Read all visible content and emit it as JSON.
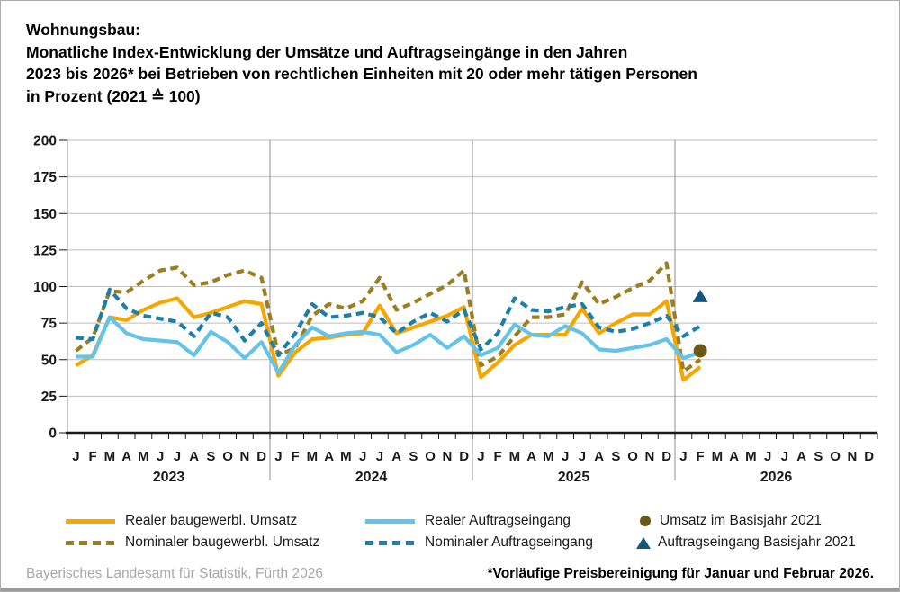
{
  "title": {
    "lines": [
      "Wohnungsbau:",
      "Monatliche Index-Entwicklung der Umsätze und Auftragseingänge in den Jahren",
      "2023 bis 2026* bei Betrieben von rechtlichen Einheiten mit 20 oder mehr tätigen Personen",
      "in Prozent (2021 ≙ 100)"
    ]
  },
  "chart_data": {
    "type": "line",
    "ylim": [
      0,
      200
    ],
    "y_ticks": [
      0,
      25,
      50,
      75,
      100,
      125,
      150,
      175,
      200
    ],
    "years": [
      "2023",
      "2024",
      "2025",
      "2026"
    ],
    "month_letters": [
      "J",
      "F",
      "M",
      "A",
      "M",
      "J",
      "J",
      "A",
      "S",
      "O",
      "N",
      "D"
    ],
    "grid": true,
    "series": [
      {
        "name": "Realer baugewerbl. Umsatz",
        "color": "#F7A600",
        "style": "solid",
        "values": [
          46,
          53,
          79,
          77,
          84,
          89,
          92,
          79,
          82,
          86,
          90,
          88,
          39,
          55,
          64,
          65,
          67,
          68,
          87,
          68,
          72,
          76,
          80,
          86,
          38,
          48,
          60,
          67,
          67,
          67,
          85,
          68,
          75,
          81,
          81,
          90,
          36,
          45
        ]
      },
      {
        "name": "Nominaler baugewerbl. Umsatz",
        "color": "#9C7D1F",
        "style": "dashed",
        "values": [
          56,
          65,
          97,
          96,
          104,
          111,
          113,
          101,
          103,
          108,
          111,
          106,
          53,
          58,
          80,
          88,
          85,
          90,
          106,
          84,
          89,
          95,
          101,
          111,
          46,
          52,
          66,
          79,
          79,
          81,
          103,
          88,
          93,
          99,
          104,
          116,
          42,
          50
        ]
      },
      {
        "name": "Realer Auftragseingang",
        "color": "#63C3E8",
        "style": "solid",
        "values": [
          52,
          52,
          79,
          68,
          64,
          63,
          62,
          53,
          69,
          62,
          51,
          62,
          41,
          60,
          72,
          66,
          68,
          69,
          67,
          55,
          60,
          67,
          58,
          66,
          53,
          58,
          74,
          67,
          66,
          73,
          68,
          57,
          56,
          58,
          60,
          64,
          51,
          55
        ]
      },
      {
        "name": "Nominaler Auftragseingang",
        "color": "#1B7FAC",
        "style": "dashed",
        "values": [
          65,
          64,
          98,
          85,
          80,
          78,
          76,
          66,
          82,
          79,
          63,
          75,
          53,
          68,
          88,
          79,
          80,
          82,
          79,
          68,
          76,
          82,
          76,
          84,
          57,
          68,
          92,
          84,
          83,
          86,
          88,
          72,
          69,
          71,
          75,
          80,
          66,
          73
        ]
      }
    ],
    "point_markers": [
      {
        "name": "Umsatz im Basisjahr 2021",
        "shape": "circle",
        "color": "#6B5716",
        "month_index": 37,
        "value": 56
      },
      {
        "name": "Auftragseingang Basisjahr 2021",
        "shape": "triangle",
        "color": "#17567B",
        "month_index": 37,
        "value": 93
      }
    ]
  },
  "legend": {
    "items": [
      {
        "label": "Realer baugewerbl. Umsatz",
        "swatch": "line-solid",
        "color": "#F7A600"
      },
      {
        "label": "Nominaler baugewerbl. Umsatz",
        "swatch": "line-dashed",
        "color": "#9C7D1F"
      },
      {
        "label": "Realer Auftragseingang",
        "swatch": "line-solid",
        "color": "#63C3E8"
      },
      {
        "label": "Nominaler Auftragseingang",
        "swatch": "line-dashed",
        "color": "#1B7FAC"
      },
      {
        "label": "Umsatz im Basisjahr 2021",
        "swatch": "circle",
        "color": "#6B5716"
      },
      {
        "label": "Auftragseingang Basisjahr 2021",
        "swatch": "triangle",
        "color": "#17567B"
      }
    ]
  },
  "footer": {
    "source": "Bayerisches Landesamt für Statistik, Fürth 2026",
    "footnote": "*Vorläufige Preisbereinigung für Januar und Februar 2026."
  }
}
